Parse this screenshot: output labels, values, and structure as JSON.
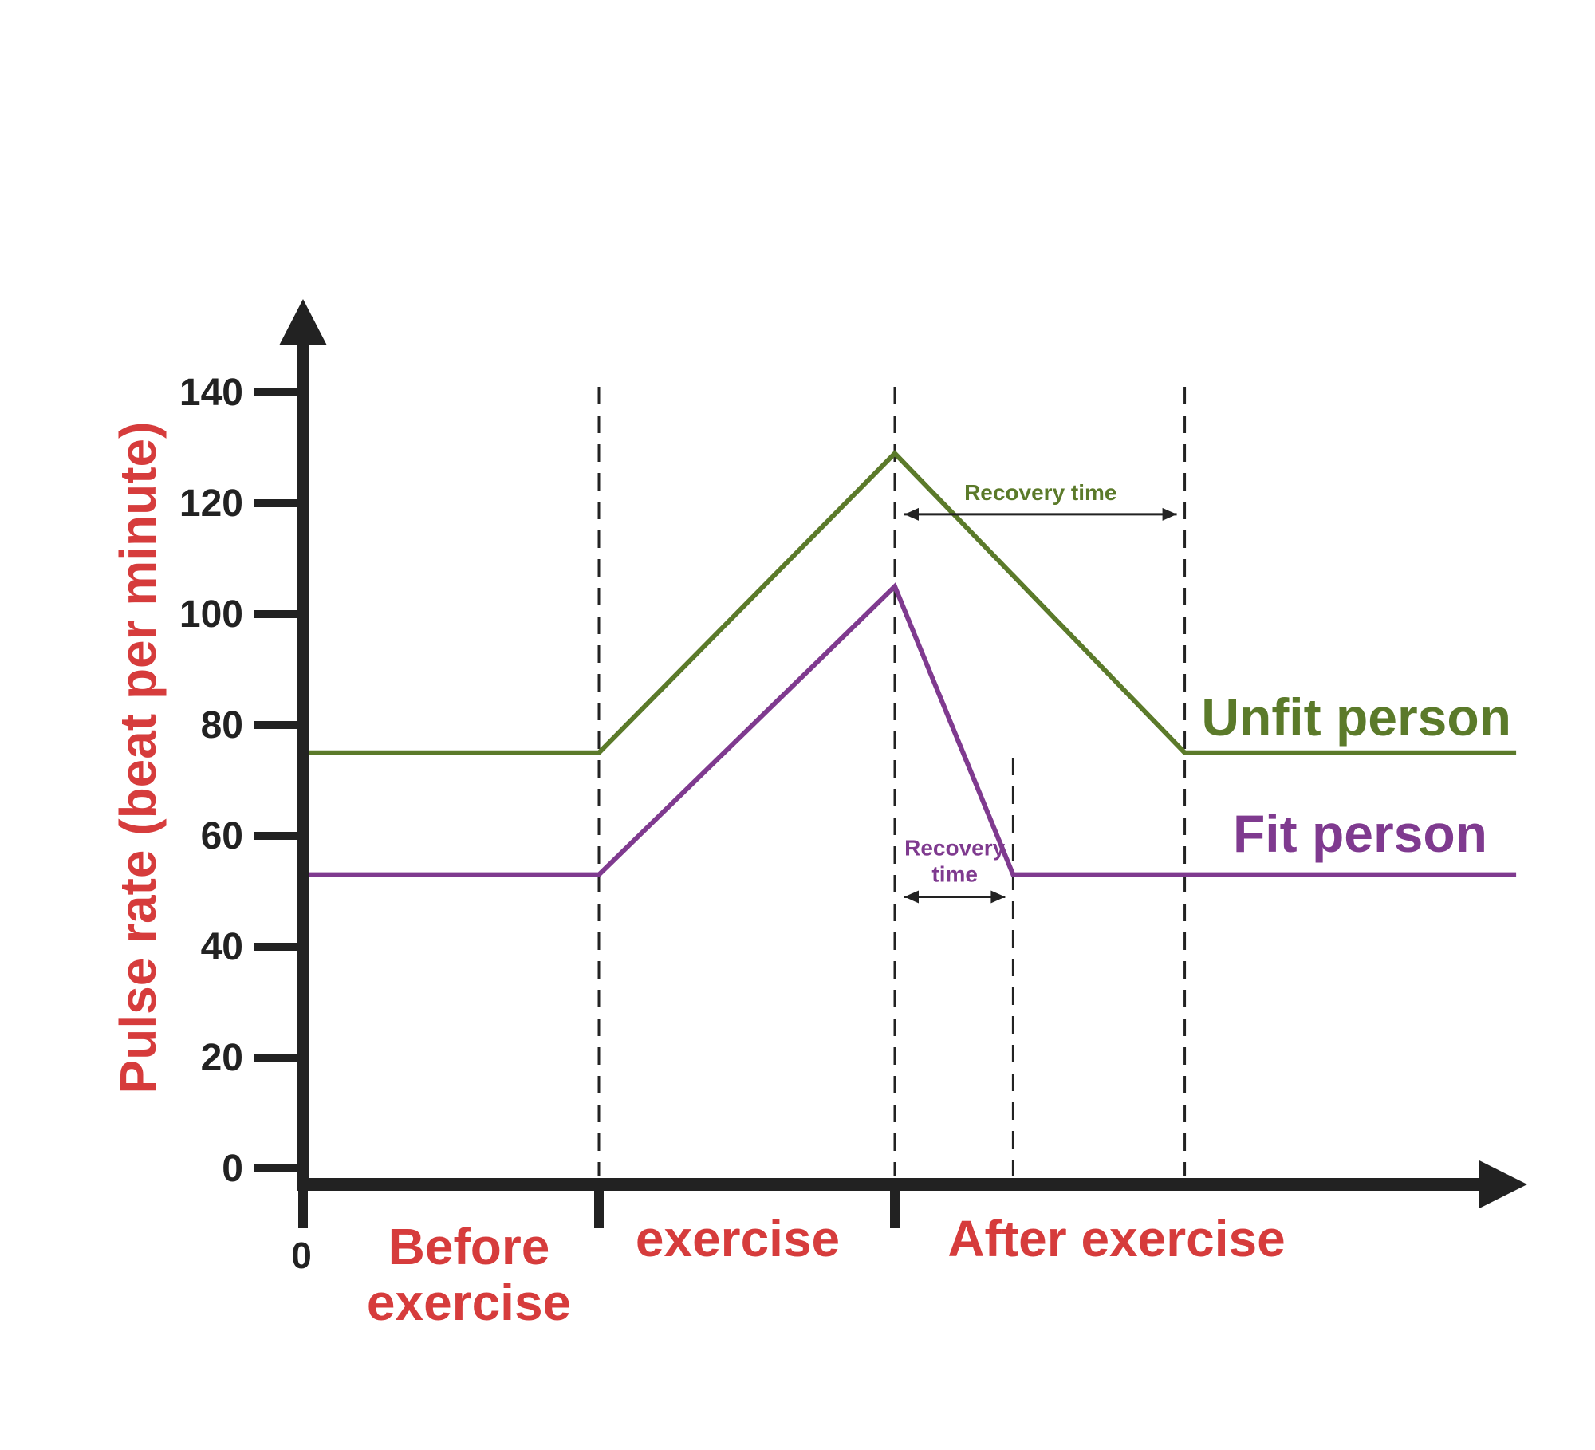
{
  "chart_data": {
    "type": "line",
    "ylabel": "Pulse rate (beat per minute)",
    "yticks": [
      0,
      20,
      40,
      60,
      80,
      100,
      120,
      140
    ],
    "ylim": [
      0,
      140
    ],
    "x_origin_label": "0",
    "phases": [
      {
        "label_lines": [
          "Before",
          "exercise"
        ]
      },
      {
        "label_lines": [
          "exercise"
        ]
      },
      {
        "label_lines": [
          "After exercise"
        ]
      }
    ],
    "series": [
      {
        "name": "Unfit person",
        "color": "#5b7a2a",
        "points": [
          [
            0,
            75
          ],
          [
            1,
            75
          ],
          [
            2,
            129
          ],
          [
            2.98,
            75
          ],
          [
            4.1,
            75
          ]
        ]
      },
      {
        "name": "Fit person",
        "color": "#7f3a8f",
        "points": [
          [
            0,
            53
          ],
          [
            1,
            53
          ],
          [
            2,
            105
          ],
          [
            2.4,
            53
          ],
          [
            4.1,
            53
          ]
        ]
      }
    ],
    "dividers": [
      1,
      2,
      2.4,
      2.98
    ],
    "annotations": [
      {
        "lines": [
          "Recovery time"
        ],
        "color": "#5b7a2a",
        "from": 2,
        "to": 2.98,
        "y": 118
      },
      {
        "lines": [
          "Recovery",
          "time"
        ],
        "color": "#7f3a8f",
        "from": 2,
        "to": 2.4,
        "y": 49
      }
    ],
    "colors": {
      "axis": "#222222",
      "label": "#d63c3c",
      "divider": "#222222"
    },
    "grid": false
  }
}
